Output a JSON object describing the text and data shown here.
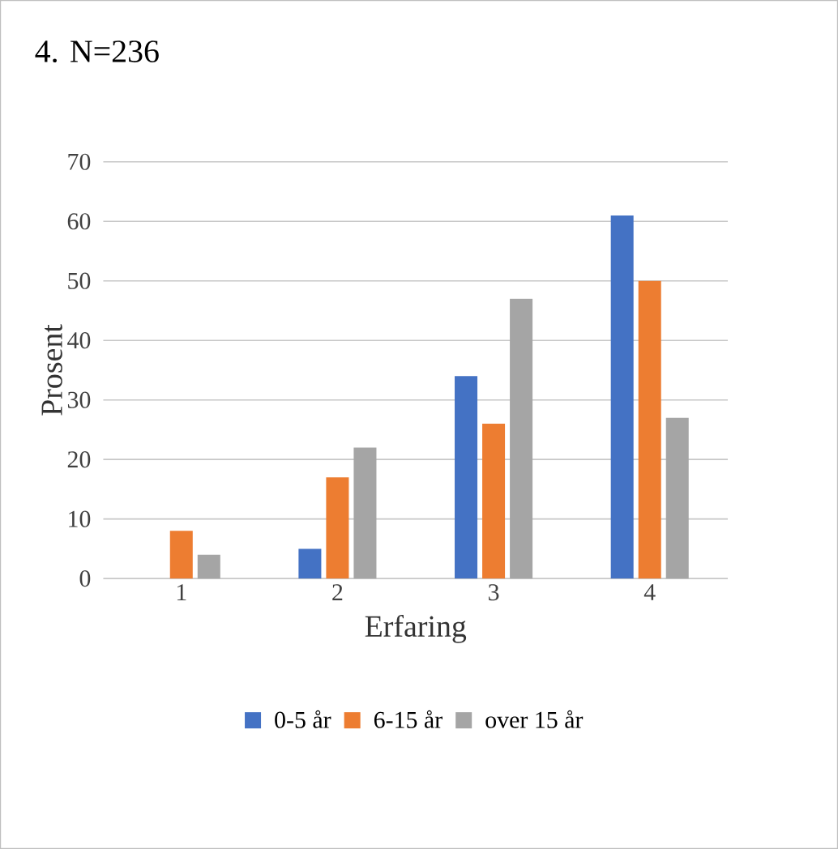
{
  "chart_data": {
    "type": "bar",
    "title": "4. N=236",
    "xlabel": "Erfaring",
    "ylabel": "Prosent",
    "categories": [
      "1",
      "2",
      "3",
      "4"
    ],
    "series": [
      {
        "name": "0-5 år",
        "color": "#4472c4",
        "values": [
          0,
          5,
          34,
          61
        ]
      },
      {
        "name": "6-15 år",
        "color": "#ed7d31",
        "values": [
          8,
          17,
          26,
          50
        ]
      },
      {
        "name": "over 15 år",
        "color": "#a5a5a5",
        "values": [
          4,
          22,
          47,
          27
        ]
      }
    ],
    "ylim": [
      0,
      70
    ],
    "yticks": [
      0,
      10,
      20,
      30,
      40,
      50,
      60,
      70
    ],
    "grid": "y",
    "legend": "bottom"
  }
}
